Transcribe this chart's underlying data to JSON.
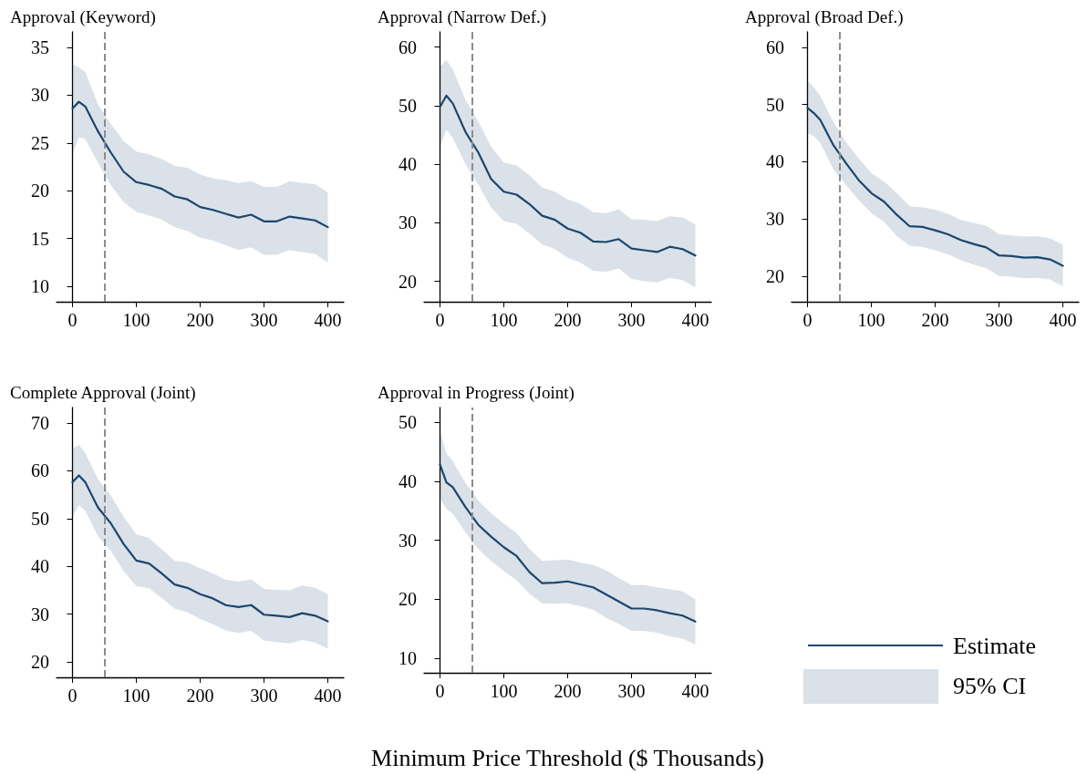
{
  "chart_data": [
    {
      "type": "line",
      "title": "Approval (Keyword)",
      "x": [
        0,
        10,
        20,
        40,
        60,
        80,
        100,
        120,
        140,
        160,
        180,
        200,
        220,
        240,
        260,
        280,
        300,
        320,
        340,
        360,
        380,
        400
      ],
      "xlim": [
        -25,
        425
      ],
      "xticks": [
        0,
        100,
        200,
        300,
        400
      ],
      "ylim": [
        8.4,
        36.6
      ],
      "yticks": [
        10,
        15,
        20,
        25,
        30,
        35
      ],
      "grid": false,
      "marker": "none",
      "line_style": "solid",
      "ref_lines": [
        {
          "axis": "x",
          "value": 50,
          "color": "#8c8c8c",
          "line_style": "dashed"
        }
      ],
      "series": [
        {
          "color": "#1b466e",
          "values": [
            28.6,
            29.3,
            28.8,
            26.2,
            24,
            22,
            20.9,
            20.6,
            20.2,
            19.4,
            19.1,
            18.3,
            18,
            17.6,
            17.2,
            17.5,
            16.8,
            16.8,
            17.3,
            17.1,
            16.9,
            16.2
          ],
          "upper": [
            33.2,
            32.9,
            32.4,
            29,
            27,
            25.2,
            24.1,
            23.8,
            23.3,
            22.6,
            22.4,
            21.7,
            21.3,
            21.1,
            20.8,
            21,
            20.4,
            20.4,
            21,
            20.8,
            20.7,
            19.8
          ],
          "lower": [
            23.9,
            25.6,
            25.4,
            22.9,
            20.6,
            18.8,
            17.8,
            17.4,
            17,
            16.2,
            15.8,
            15.1,
            14.8,
            14.3,
            13.8,
            14.1,
            13.3,
            13.3,
            13.8,
            13.6,
            13.4,
            12.5
          ]
        }
      ]
    },
    {
      "type": "line",
      "title": "Approval (Narrow Def.)",
      "x": [
        0,
        10,
        20,
        40,
        60,
        80,
        100,
        120,
        140,
        160,
        180,
        200,
        220,
        240,
        260,
        280,
        300,
        320,
        340,
        360,
        380,
        400
      ],
      "xlim": [
        -25,
        425
      ],
      "xticks": [
        0,
        100,
        200,
        300,
        400
      ],
      "ylim": [
        16.5,
        62.6
      ],
      "yticks": [
        20,
        30,
        40,
        50,
        60
      ],
      "grid": false,
      "marker": "none",
      "line_style": "solid",
      "ref_lines": [
        {
          "axis": "x",
          "value": 50,
          "color": "#8c8c8c",
          "line_style": "dashed"
        }
      ],
      "series": [
        {
          "color": "#1b466e",
          "values": [
            49.8,
            51.7,
            50.4,
            45.5,
            42,
            37.5,
            35.3,
            34.8,
            33.2,
            31.2,
            30.5,
            29,
            28.3,
            26.8,
            26.7,
            27.2,
            25.6,
            25.3,
            25,
            25.9,
            25.5,
            24.4
          ],
          "upper": [
            56.7,
            57.8,
            56.2,
            51,
            47.3,
            43,
            40.3,
            39.8,
            38.1,
            36,
            35.3,
            34,
            33.2,
            31.8,
            31.6,
            32.3,
            30.6,
            30.5,
            30.3,
            31.1,
            30.9,
            29.7
          ],
          "lower": [
            43,
            45.9,
            44.5,
            40,
            36.5,
            32.6,
            30.3,
            29.8,
            28.2,
            26.3,
            25.5,
            24,
            23.2,
            21.8,
            21.6,
            22.2,
            20.4,
            20,
            19.8,
            20.6,
            20.2,
            19
          ]
        }
      ]
    },
    {
      "type": "line",
      "title": "Approval (Broad Def.)",
      "x": [
        0,
        10,
        20,
        40,
        60,
        80,
        100,
        120,
        140,
        160,
        180,
        200,
        220,
        240,
        260,
        280,
        300,
        320,
        340,
        360,
        380,
        400
      ],
      "xlim": [
        -25,
        425
      ],
      "xticks": [
        0,
        100,
        200,
        300,
        400
      ],
      "ylim": [
        15.5,
        62.7
      ],
      "yticks": [
        20,
        30,
        40,
        50,
        60
      ],
      "grid": false,
      "marker": "none",
      "line_style": "solid",
      "ref_lines": [
        {
          "axis": "x",
          "value": 50,
          "color": "#8c8c8c",
          "line_style": "dashed"
        }
      ],
      "series": [
        {
          "color": "#1b466e",
          "values": [
            49.4,
            48.5,
            47.3,
            43,
            39.8,
            36.8,
            34.5,
            33,
            30.7,
            28.7,
            28.6,
            28,
            27.3,
            26.3,
            25.6,
            25,
            23.6,
            23.5,
            23.2,
            23.3,
            22.9,
            21.8
          ],
          "upper": [
            54.2,
            53,
            51.5,
            47,
            43.5,
            40.6,
            38,
            36.5,
            34.5,
            32.2,
            32,
            31.6,
            30.9,
            29.8,
            29.3,
            28.8,
            27.3,
            27.1,
            26.9,
            27,
            26.6,
            25.5
          ],
          "lower": [
            45,
            44.5,
            43.3,
            38.8,
            36,
            33.3,
            31,
            29.5,
            27,
            25.3,
            25.1,
            24.5,
            23.8,
            22.8,
            22,
            21.4,
            20,
            19.9,
            19.6,
            19.7,
            19.4,
            18.2
          ]
        }
      ]
    },
    {
      "type": "line",
      "title": "Complete Approval (Joint)",
      "x": [
        0,
        10,
        20,
        40,
        60,
        80,
        100,
        120,
        140,
        160,
        180,
        200,
        220,
        240,
        260,
        280,
        300,
        320,
        340,
        360,
        380,
        400
      ],
      "xlim": [
        -25,
        425
      ],
      "xticks": [
        0,
        100,
        200,
        300,
        400
      ],
      "ylim": [
        16.8,
        73.2
      ],
      "yticks": [
        20,
        30,
        40,
        50,
        60,
        70
      ],
      "grid": false,
      "marker": "none",
      "line_style": "solid",
      "ref_lines": [
        {
          "axis": "x",
          "value": 50,
          "color": "#8c8c8c",
          "line_style": "dashed"
        }
      ],
      "series": [
        {
          "color": "#1b466e",
          "values": [
            57.6,
            59,
            57.6,
            52.3,
            49,
            44.7,
            41.2,
            40.6,
            38.5,
            36.2,
            35.5,
            34.2,
            33.3,
            31.9,
            31.5,
            31.9,
            29.9,
            29.7,
            29.4,
            30.2,
            29.7,
            28.5
          ],
          "upper": [
            64.6,
            65.4,
            63.7,
            58.2,
            54.8,
            50.4,
            46.7,
            45.9,
            43.5,
            41.2,
            40.8,
            39.6,
            38.5,
            37.2,
            36.8,
            37.3,
            35.3,
            35.1,
            35,
            36,
            35.5,
            34.2
          ],
          "lower": [
            50.5,
            52.8,
            51.6,
            46.3,
            43.3,
            39,
            35.9,
            35.4,
            33.4,
            31.2,
            30.4,
            29,
            27.9,
            26.6,
            26.1,
            26.5,
            24.5,
            24.2,
            23.9,
            24.6,
            24.1,
            22.8
          ]
        }
      ]
    },
    {
      "type": "line",
      "title": "Approval in Progress (Joint)",
      "xlabel": "Minimum Price Threshold ($ Thousands)",
      "legend": "right",
      "annotations": [
        "95% CI"
      ],
      "x": [
        0,
        10,
        20,
        40,
        60,
        80,
        100,
        120,
        140,
        160,
        180,
        200,
        220,
        240,
        260,
        280,
        300,
        320,
        340,
        360,
        380,
        400
      ],
      "xlim": [
        -25,
        425
      ],
      "xticks": [
        0,
        100,
        200,
        300,
        400
      ],
      "ylim": [
        7.5,
        52.5
      ],
      "yticks": [
        10,
        20,
        30,
        40,
        50
      ],
      "grid": false,
      "marker": "none",
      "line_style": "solid",
      "ref_lines": [
        {
          "axis": "x",
          "value": 50,
          "color": "#8c8c8c",
          "line_style": "dashed"
        }
      ],
      "series": [
        {
          "name": "Estimate",
          "color": "#1b466e",
          "values": [
            42.8,
            39.8,
            39,
            35.6,
            32.6,
            30.6,
            28.8,
            27.3,
            24.6,
            22.7,
            22.8,
            23,
            22.5,
            22,
            20.8,
            19.6,
            18.4,
            18.4,
            18.1,
            17.6,
            17.2,
            16.2
          ],
          "upper": [
            48.5,
            44.7,
            43.4,
            39.7,
            36.7,
            34.6,
            32.8,
            31.2,
            28.5,
            26.5,
            26.6,
            26.7,
            26.2,
            25.8,
            24.9,
            23.6,
            22.4,
            22.4,
            22,
            21.7,
            21.3,
            20
          ],
          "lower": [
            37.1,
            35.3,
            34.5,
            31.3,
            28.5,
            26.5,
            24.8,
            23.2,
            20.9,
            19.3,
            19.2,
            19.3,
            18.8,
            18.2,
            16.8,
            15.8,
            14.6,
            14.6,
            14.3,
            13.7,
            13.3,
            12.3
          ]
        }
      ]
    }
  ]
}
